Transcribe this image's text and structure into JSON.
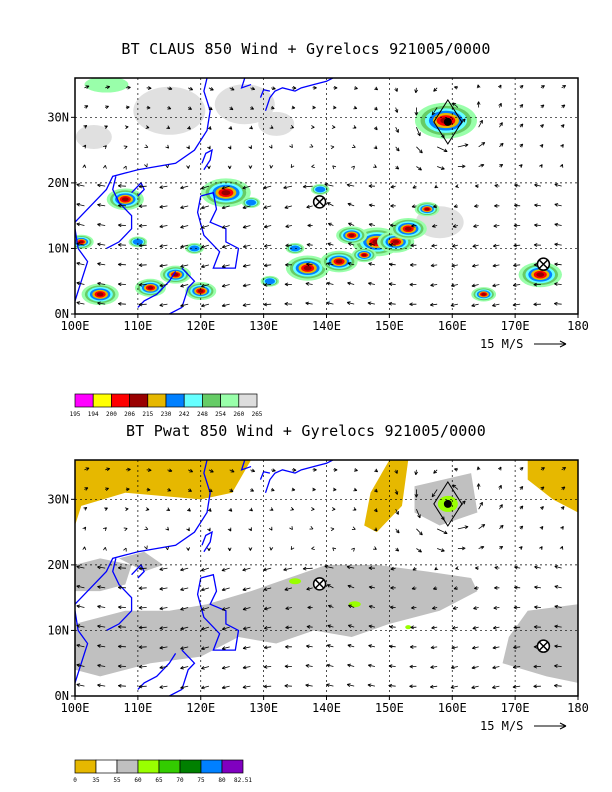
{
  "charts": [
    {
      "title": "BT CLAUS 850 Wind + Gyrelocs 921005/0000",
      "x_ticks": [
        "100E",
        "110E",
        "120E",
        "130E",
        "140E",
        "150E",
        "160E",
        "170E",
        "180"
      ],
      "y_ticks": [
        "0N",
        "10N",
        "20N",
        "30N"
      ],
      "ref_vector_label": "15 M/S",
      "colorbar_labels": [
        "195",
        "194",
        "200",
        "206",
        "215",
        "230",
        "242",
        "248",
        "254",
        "260",
        "265"
      ],
      "colorbar_colors": [
        "#ff00ff",
        "#ffff00",
        "#ff0000",
        "#990000",
        "#e6b800",
        "#0080ff",
        "#66ffff",
        "#66cc66",
        "#99ffaa",
        "#dddddd"
      ],
      "gyre_locations": [
        {
          "lon": 138.9,
          "lat": 17.1
        },
        {
          "lon": 174.5,
          "lat": 7.6
        }
      ],
      "typhoon_location": {
        "lon": 159.3,
        "lat": 29.3
      }
    },
    {
      "title": "BT Pwat 850 Wind + Gyrelocs 921005/0000",
      "x_ticks": [
        "100E",
        "110E",
        "120E",
        "130E",
        "140E",
        "150E",
        "160E",
        "170E",
        "180"
      ],
      "y_ticks": [
        "0N",
        "10N",
        "20N",
        "30N"
      ],
      "ref_vector_label": "15 M/S",
      "colorbar_labels": [
        "0",
        "35",
        "55",
        "60",
        "65",
        "70",
        "75",
        "80",
        "82.51"
      ],
      "colorbar_colors": [
        "#e6b800",
        "#ffffff",
        "#c0c0c0",
        "#99ff00",
        "#33cc00",
        "#008000",
        "#0080ff",
        "#8000c0"
      ],
      "gyre_locations": [
        {
          "lon": 138.9,
          "lat": 17.1
        },
        {
          "lon": 174.5,
          "lat": 7.6
        }
      ],
      "typhoon_location": {
        "lon": 159.3,
        "lat": 29.3
      }
    }
  ],
  "chart_data": [
    {
      "type": "heatmap",
      "title": "BT CLAUS 850 Wind + Gyrelocs 921005/0000",
      "xlim": [
        100,
        180
      ],
      "ylim": [
        0,
        36
      ],
      "xlabel": "",
      "ylabel": "",
      "grid": true,
      "colorbar": [
        195,
        194,
        200,
        206,
        215,
        230,
        242,
        248,
        254,
        260,
        265
      ]
    },
    {
      "type": "heatmap",
      "title": "BT Pwat 850 Wind + Gyrelocs 921005/0000",
      "xlim": [
        100,
        180
      ],
      "ylim": [
        0,
        36
      ],
      "xlabel": "",
      "ylabel": "",
      "grid": true,
      "colorbar": [
        0,
        35,
        55,
        60,
        65,
        70,
        75,
        80,
        82.51
      ]
    }
  ]
}
